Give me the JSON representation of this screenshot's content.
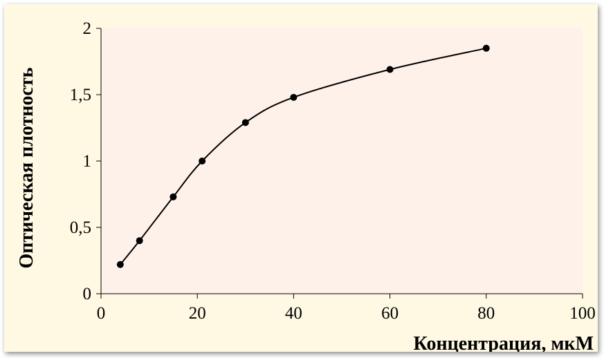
{
  "chart_data": {
    "type": "line",
    "title": "",
    "xlabel": "Концентрация,  мкМ",
    "ylabel": "Оптическая плотность",
    "xlim": [
      0,
      100
    ],
    "ylim": [
      0,
      2
    ],
    "x_ticks": [
      0,
      20,
      40,
      60,
      80,
      100
    ],
    "x_tick_labels": [
      "0",
      "20",
      "40",
      "60",
      "80",
      "100"
    ],
    "y_ticks": [
      0,
      0.5,
      1,
      1.5,
      2
    ],
    "y_tick_labels": [
      "0",
      "0,5",
      "1",
      "1,5",
      "2"
    ],
    "grid": false,
    "legend": "none",
    "smooth": true,
    "series": [
      {
        "x": [
          4,
          8,
          15,
          21,
          30,
          40,
          60,
          80
        ],
        "y": [
          0.22,
          0.4,
          0.73,
          1.0,
          1.29,
          1.48,
          1.69,
          1.85
        ]
      }
    ],
    "colors": {
      "background": "#fff9e3",
      "plot_area": "#fdf1ea",
      "line": "#000000",
      "marker": "#000000"
    }
  }
}
